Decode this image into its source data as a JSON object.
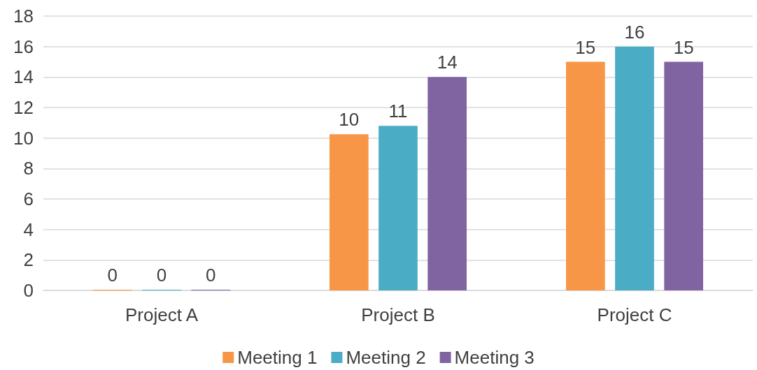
{
  "chart_data": {
    "type": "bar",
    "categories": [
      "Project A",
      "Project B",
      "Project C"
    ],
    "series": [
      {
        "name": "Meeting 1",
        "color": "#f79646",
        "values": [
          0,
          10.25,
          15
        ],
        "value_labels": [
          "0",
          "10",
          "15"
        ]
      },
      {
        "name": "Meeting 2",
        "color": "#4bacc6",
        "values": [
          0,
          10.8,
          16
        ],
        "value_labels": [
          "0",
          "11",
          "16"
        ]
      },
      {
        "name": "Meeting 3",
        "color": "#8064a2",
        "values": [
          0,
          14,
          15
        ],
        "value_labels": [
          "0",
          "14",
          "15"
        ]
      }
    ],
    "ylim": [
      0,
      18
    ],
    "yticks": [
      0,
      2,
      4,
      6,
      8,
      10,
      12,
      14,
      16,
      18
    ],
    "grid": "y",
    "legend": "bottom"
  }
}
